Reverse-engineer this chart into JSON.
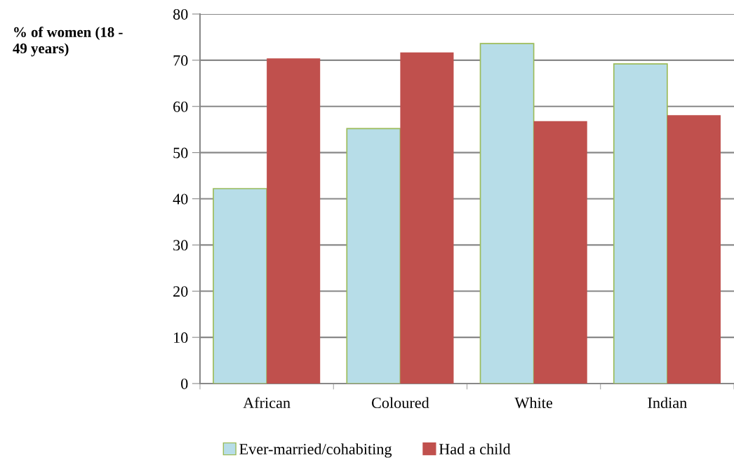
{
  "chart_data": {
    "type": "bar",
    "ylabel": "% of women (18 - 49 years)",
    "categories": [
      "African",
      "Coloured",
      "White",
      "Indian"
    ],
    "series": [
      {
        "name": "Ever-married/cohabiting",
        "color": "#b7dde8",
        "values": [
          42.2,
          55.2,
          73.6,
          69.2
        ]
      },
      {
        "name": "Had a child",
        "color": "#c0504d",
        "values": [
          70.4,
          71.7,
          56.8,
          58.1
        ]
      }
    ],
    "ylim": [
      0,
      80
    ],
    "yticks": [
      0,
      10,
      20,
      30,
      40,
      50,
      60,
      70,
      80
    ],
    "grid": "y",
    "legend": "bottom"
  }
}
